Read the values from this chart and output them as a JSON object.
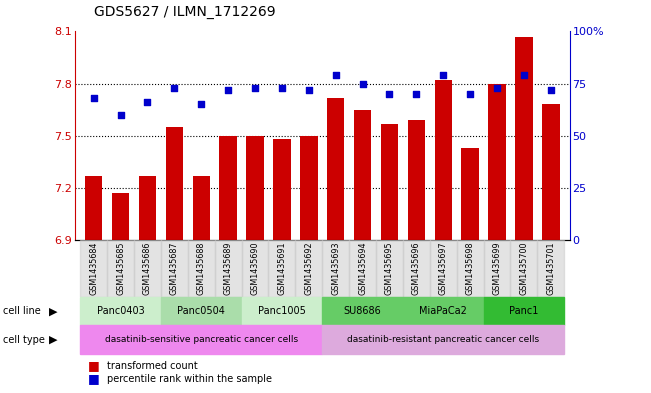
{
  "title": "GDS5627 / ILMN_1712269",
  "samples": [
    "GSM1435684",
    "GSM1435685",
    "GSM1435686",
    "GSM1435687",
    "GSM1435688",
    "GSM1435689",
    "GSM1435690",
    "GSM1435691",
    "GSM1435692",
    "GSM1435693",
    "GSM1435694",
    "GSM1435695",
    "GSM1435696",
    "GSM1435697",
    "GSM1435698",
    "GSM1435699",
    "GSM1435700",
    "GSM1435701"
  ],
  "bar_values": [
    7.27,
    7.17,
    7.27,
    7.55,
    7.27,
    7.5,
    7.5,
    7.48,
    7.5,
    7.72,
    7.65,
    7.57,
    7.59,
    7.82,
    7.43,
    7.8,
    8.07,
    7.68
  ],
  "dot_values": [
    68,
    60,
    66,
    73,
    65,
    72,
    73,
    73,
    72,
    79,
    75,
    70,
    70,
    79,
    70,
    73,
    79,
    72
  ],
  "ylim_left": [
    6.9,
    8.1
  ],
  "ylim_right": [
    0,
    100
  ],
  "yticks_left": [
    6.9,
    7.2,
    7.5,
    7.8,
    8.1
  ],
  "yticks_right": [
    0,
    25,
    50,
    75,
    100
  ],
  "ytick_labels_left": [
    "6.9",
    "7.2",
    "7.5",
    "7.8",
    "8.1"
  ],
  "ytick_labels_right": [
    "0",
    "25",
    "50",
    "75",
    "100%"
  ],
  "bar_color": "#cc0000",
  "dot_color": "#0000cc",
  "bar_bottom": 6.9,
  "cell_lines": [
    {
      "label": "Panc0403",
      "start": 0,
      "end": 3,
      "color": "#cceecc"
    },
    {
      "label": "Panc0504",
      "start": 3,
      "end": 6,
      "color": "#aaddaa"
    },
    {
      "label": "Panc1005",
      "start": 6,
      "end": 9,
      "color": "#cceecc"
    },
    {
      "label": "SU8686",
      "start": 9,
      "end": 12,
      "color": "#66cc66"
    },
    {
      "label": "MiaPaCa2",
      "start": 12,
      "end": 15,
      "color": "#66cc66"
    },
    {
      "label": "Panc1",
      "start": 15,
      "end": 18,
      "color": "#33bb33"
    }
  ],
  "cell_types": [
    {
      "label": "dasatinib-sensitive pancreatic cancer cells",
      "start": 0,
      "end": 9,
      "color": "#ee88ee"
    },
    {
      "label": "dasatinib-resistant pancreatic cancer cells",
      "start": 9,
      "end": 18,
      "color": "#ddaadd"
    }
  ],
  "legend_bar_label": "transformed count",
  "legend_dot_label": "percentile rank within the sample",
  "cell_line_row_label": "cell line",
  "cell_type_row_label": "cell type",
  "background_color": "#ffffff",
  "axis_color_left": "#cc0000",
  "axis_color_right": "#0000cc",
  "sample_bg_color": "#cccccc",
  "grid_yticks": [
    7.2,
    7.5,
    7.8
  ]
}
